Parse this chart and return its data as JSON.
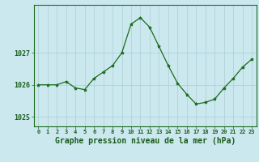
{
  "hours": [
    0,
    1,
    2,
    3,
    4,
    5,
    6,
    7,
    8,
    9,
    10,
    11,
    12,
    13,
    14,
    15,
    16,
    17,
    18,
    19,
    20,
    21,
    22,
    23
  ],
  "pressure": [
    1026.0,
    1026.0,
    1026.0,
    1026.1,
    1025.9,
    1025.85,
    1026.2,
    1026.4,
    1026.6,
    1027.0,
    1027.9,
    1028.1,
    1027.8,
    1027.2,
    1026.6,
    1026.05,
    1025.7,
    1025.4,
    1025.45,
    1025.55,
    1025.9,
    1026.2,
    1026.55,
    1026.8
  ],
  "line_color": "#1a6b1a",
  "marker": "*",
  "marker_size": 3,
  "bg_color": "#cce8ef",
  "grid_color": "#aacdd6",
  "title": "Graphe pression niveau de la mer (hPa)",
  "title_fontsize": 7.0,
  "title_color": "#1a5c1a",
  "tick_color": "#1a5c1a",
  "yticks": [
    1025,
    1026,
    1027
  ],
  "ylim": [
    1024.7,
    1028.5
  ],
  "xlim": [
    -0.5,
    23.5
  ]
}
